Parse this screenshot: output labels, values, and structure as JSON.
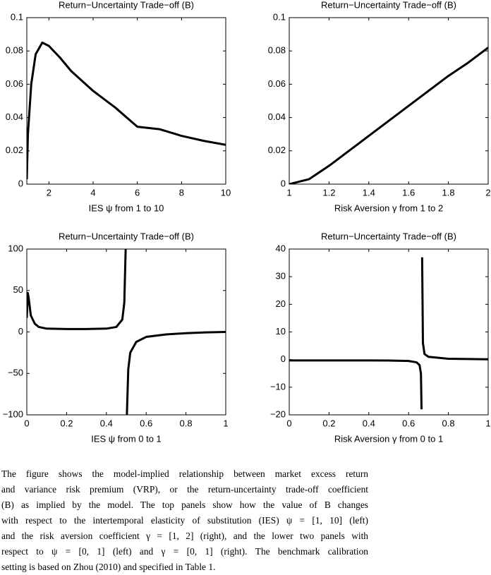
{
  "chart_data": [
    {
      "type": "line",
      "title": "Return−Uncertainty Trade−off (B)",
      "x_label": "IES  ψ from 1 to 10",
      "color": "#000000",
      "x": [
        1,
        1.05,
        1.2,
        1.4,
        1.7,
        2,
        2.5,
        3,
        4,
        5,
        6,
        7,
        8,
        9,
        10
      ],
      "values": [
        0.003,
        0.03,
        0.06,
        0.078,
        0.085,
        0.083,
        0.076,
        0.068,
        0.056,
        0.046,
        0.0345,
        0.033,
        0.029,
        0.026,
        0.0236
      ],
      "xlim": [
        1,
        10
      ],
      "xticks": [
        2,
        4,
        6,
        8,
        10
      ],
      "ylim": [
        0,
        0.1
      ],
      "yticks": [
        0,
        0.02,
        0.04,
        0.06,
        0.08,
        0.1
      ]
    },
    {
      "type": "line",
      "title": "Return−Uncertainty Trade−off (B)",
      "x_label": "Risk Aversion  γ from 1 to 2",
      "color": "#000000",
      "x": [
        1,
        1.1,
        1.2,
        1.3,
        1.4,
        1.5,
        1.6,
        1.7,
        1.8,
        1.9,
        2
      ],
      "values": [
        0,
        0.003,
        0.011,
        0.02,
        0.029,
        0.038,
        0.047,
        0.056,
        0.065,
        0.073,
        0.082
      ],
      "xlim": [
        1,
        2
      ],
      "xticks": [
        1,
        1.2,
        1.4,
        1.6,
        1.8,
        2
      ],
      "ylim": [
        0,
        0.1
      ],
      "yticks": [
        0,
        0.02,
        0.04,
        0.06,
        0.08,
        0.1
      ]
    },
    {
      "type": "line",
      "title": "Return−Uncertainty Trade−off (B)",
      "x_label": "IES  ψ from 0 to 1",
      "color": "#000000",
      "x": [
        0,
        0.005,
        0.01,
        0.02,
        0.04,
        0.06,
        0.1,
        0.2,
        0.3,
        0.4,
        0.45,
        0.48,
        0.49,
        0.497,
        0.5,
        0.503,
        0.51,
        0.52,
        0.55,
        0.6,
        0.7,
        0.8,
        0.9,
        1
      ],
      "values": [
        17,
        47,
        40,
        20,
        10,
        6,
        4,
        3.5,
        3.5,
        4,
        6,
        15,
        35,
        100,
        null,
        -100,
        -45,
        -25,
        -12,
        -6,
        -3,
        -1.5,
        -0.5,
        0
      ],
      "xlim": [
        0,
        1
      ],
      "xticks": [
        0,
        0.2,
        0.4,
        0.6,
        0.8,
        1
      ],
      "ylim": [
        -100,
        100
      ],
      "yticks": [
        {
          "value": -100,
          "label": "−100"
        },
        {
          "value": -50,
          "label": "−50"
        },
        0,
        50,
        100
      ]
    },
    {
      "type": "line",
      "title": "Return−Uncertainty Trade−off (B)",
      "x_label": "Risk Aversion  γ from 0 to 1",
      "color": "#000000",
      "x": [
        0,
        0.2,
        0.4,
        0.5,
        0.6,
        0.64,
        0.655,
        0.662,
        0.665,
        0.666,
        0.668,
        0.672,
        0.68,
        0.7,
        0.8,
        1
      ],
      "values": [
        -0.3,
        -0.3,
        -0.3,
        -0.35,
        -0.5,
        -1,
        -2,
        -5,
        -18,
        null,
        37,
        6,
        2,
        1,
        0.3,
        0.1
      ],
      "xlim": [
        0,
        1
      ],
      "xticks": [
        0,
        0.2,
        0.4,
        0.6,
        0.8,
        1
      ],
      "ylim": [
        -20,
        40
      ],
      "yticks": [
        {
          "value": -20,
          "label": "−20"
        },
        {
          "value": -10,
          "label": "−10"
        },
        0,
        10,
        20,
        30,
        40
      ]
    }
  ],
  "caption": [
    "The figure shows the model-implied relationship between market excess return",
    "and variance risk premium (VRP), or the return-uncertainty trade-off coefficient",
    "(B) as implied by the model. The top panels show how the value of B changes",
    "with respect to the intertemporal elasticity of substitution (IES) ψ = [1, 10] (left)",
    "and the risk aversion coefficient γ = [1, 2] (right), and the lower two panels with",
    "respect to ψ = [0, 1] (left) and γ = [0, 1] (right).  The benchmark calibration",
    "setting is based on Zhou (2010) and specified in Table 1."
  ]
}
